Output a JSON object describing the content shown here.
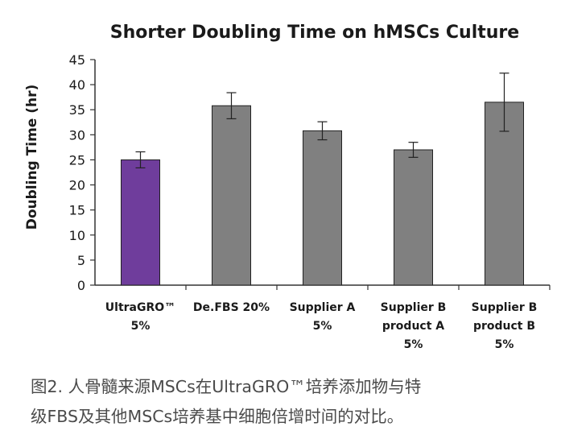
{
  "chart_data": {
    "type": "bar",
    "title": "Shorter Doubling Time on hMSCs Culture",
    "ylabel": "Doubling Time (hr)",
    "xlabel": "",
    "ylim": [
      0,
      45
    ],
    "yticks": [
      0,
      5,
      10,
      15,
      20,
      25,
      30,
      35,
      40,
      45
    ],
    "categories": [
      [
        "UltraGRO™",
        "5%"
      ],
      [
        "De.FBS 20%"
      ],
      [
        "Supplier A",
        "5%"
      ],
      [
        "Supplier B",
        "product A",
        "5%"
      ],
      [
        "Supplier B",
        "product B",
        "5%"
      ]
    ],
    "values": [
      25,
      35.8,
      30.8,
      27,
      36.5
    ],
    "error": [
      1.6,
      2.6,
      1.8,
      1.5,
      5.8
    ],
    "colors": [
      "#6f3d9c",
      "#808080",
      "#808080",
      "#808080",
      "#808080"
    ],
    "grid": false,
    "legend": "none"
  },
  "caption": {
    "line1": "图2. 人骨髓来源MSCs在UltraGRO™培养添加物与特",
    "line2": "级FBS及其他MSCs培养基中细胞倍增时间的对比。"
  }
}
